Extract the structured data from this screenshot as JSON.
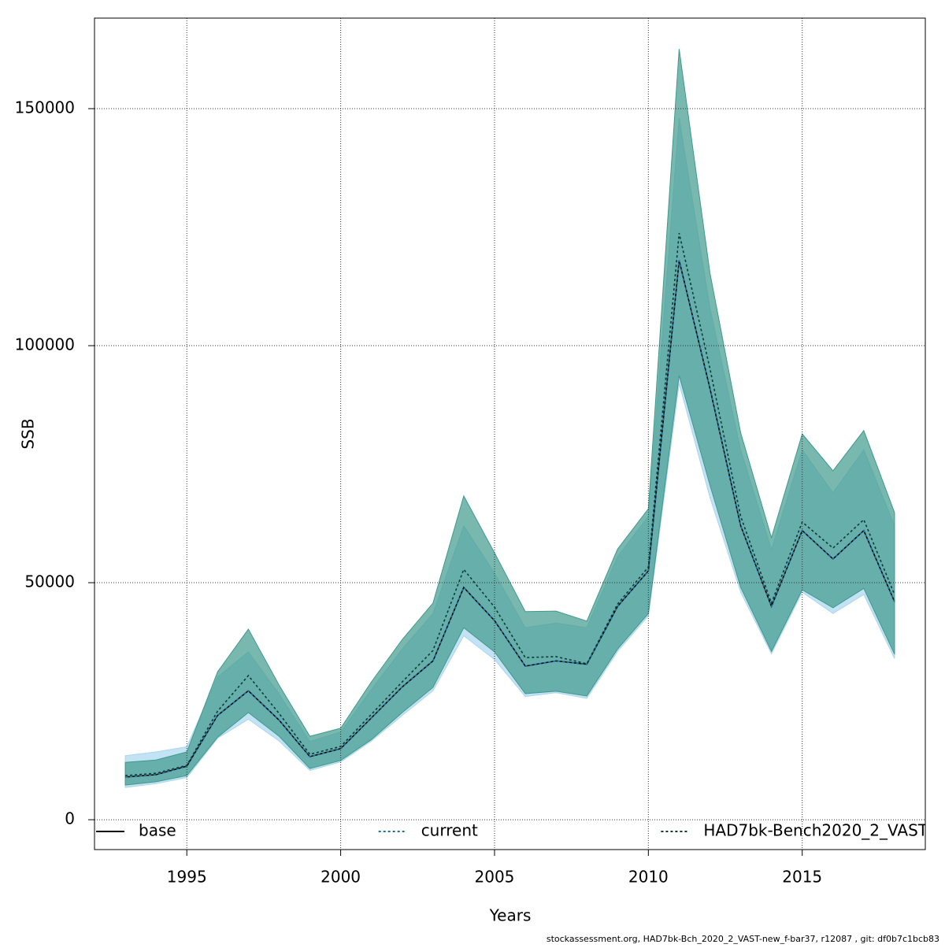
{
  "chart_data": {
    "type": "line",
    "x_label": "Years",
    "y_label": "SSB",
    "footer": "stockassessment.org, HAD7bk-Bch_2020_2_VAST-new_f-bar37, r12087 , git: df0b7c1bcb83",
    "x": [
      1993,
      1994,
      1995,
      1996,
      1997,
      1998,
      1999,
      2000,
      2001,
      2002,
      2003,
      2004,
      2005,
      2006,
      2007,
      2008,
      2009,
      2010,
      2011,
      2012,
      2013,
      2014,
      2015,
      2016,
      2017,
      2018
    ],
    "xlim": [
      1992,
      2019
    ],
    "xticks": [
      1995,
      2000,
      2005,
      2010,
      2015
    ],
    "ylim": [
      -6300,
      169100
    ],
    "yticks": [
      0,
      50000,
      100000,
      150000
    ],
    "grid": true,
    "legend": "bottom",
    "series": [
      {
        "name": "base",
        "color": "#000000",
        "dash": "solid",
        "values": [
          9000,
          9500,
          11300,
          22000,
          27200,
          21000,
          13300,
          15000,
          21500,
          28000,
          33500,
          49000,
          42000,
          32400,
          33500,
          32800,
          45000,
          52500,
          118000,
          91000,
          62000,
          45000,
          61000,
          55000,
          61000,
          46000
        ]
      },
      {
        "name": "current",
        "color": "#1f6fa8",
        "dash": "dotted",
        "band_color": "#a9d6f0",
        "values": [
          9000,
          9500,
          11300,
          22000,
          27200,
          21000,
          13300,
          15000,
          21500,
          28000,
          33500,
          49000,
          42000,
          32400,
          33500,
          32800,
          45000,
          52500,
          118000,
          91000,
          62000,
          45000,
          61000,
          55000,
          61000,
          46000
        ],
        "lower": [
          6800,
          7600,
          8900,
          17200,
          21200,
          16600,
          10400,
          12200,
          16600,
          22000,
          27200,
          38800,
          33800,
          26000,
          26800,
          25600,
          35500,
          43000,
          92000,
          68000,
          48000,
          35000,
          48000,
          43500,
          47500,
          34000
        ],
        "upper": [
          13500,
          14300,
          15400,
          30100,
          35400,
          26500,
          16500,
          18500,
          27500,
          36000,
          43500,
          62000,
          52000,
          40500,
          41500,
          40500,
          55500,
          64000,
          148000,
          108000,
          78000,
          57000,
          78000,
          69000,
          78000,
          62000
        ]
      },
      {
        "name": "HAD7bk-Bench2020_2_VAST",
        "color": "#0b3b36",
        "dash": "dotted",
        "band_color": "#3f9a8c",
        "values": [
          9300,
          9800,
          11460,
          22900,
          30400,
          22400,
          13800,
          15450,
          22250,
          29070,
          35700,
          52800,
          44850,
          34200,
          34400,
          32900,
          45500,
          53300,
          123750,
          95200,
          64000,
          45700,
          62800,
          57300,
          63300,
          47500
        ],
        "lower": [
          7300,
          8000,
          9300,
          17400,
          22600,
          17600,
          10800,
          12500,
          16900,
          22600,
          27900,
          40500,
          35400,
          26600,
          27100,
          26100,
          36000,
          43500,
          93700,
          70600,
          49000,
          35500,
          48500,
          44700,
          48800,
          34900
        ],
        "upper": [
          12100,
          12600,
          14300,
          31200,
          40200,
          28400,
          17600,
          19300,
          29100,
          38000,
          45700,
          68300,
          56300,
          43900,
          44000,
          41900,
          57100,
          65600,
          162600,
          115400,
          81600,
          59500,
          81400,
          73600,
          82100,
          64800
        ]
      }
    ]
  }
}
